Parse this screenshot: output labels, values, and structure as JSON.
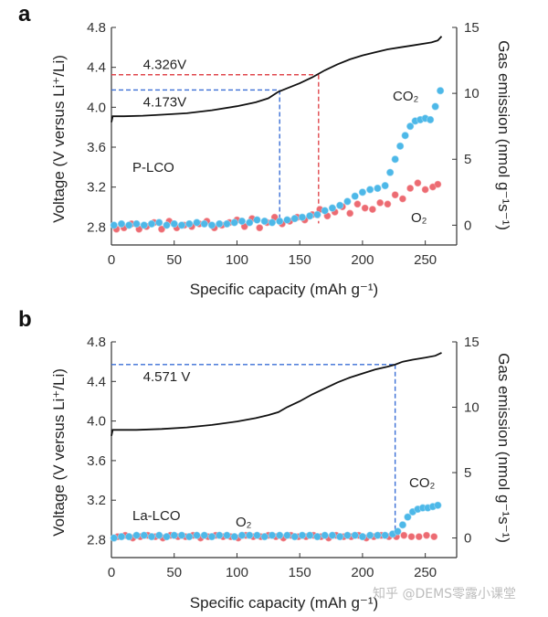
{
  "watermark": "知乎 @DEMS零露小课堂",
  "colors": {
    "voltage": "#111111",
    "co2": "#4db8e8",
    "o2": "#ec6b72",
    "guide_blue": "#3b6fd6",
    "guide_red": "#e0474c"
  },
  "chart_data": [
    {
      "id": "a",
      "panel_label": "a",
      "type": "line+scatter",
      "sample_label": "P-LCO",
      "xlabel": "Specific capacity (mAh g⁻¹)",
      "ylabel_left": "Voltage (V versus Li⁺/Li)",
      "ylabel_right": "Gas emission (nmol g⁻¹s⁻¹)",
      "xlim": [
        0,
        275
      ],
      "ylim_left": [
        2.62,
        4.8
      ],
      "ylim_right": [
        -1.5,
        15
      ],
      "xticks": [
        0,
        50,
        100,
        150,
        200,
        250
      ],
      "yticks_left": [
        2.8,
        3.2,
        3.6,
        4.0,
        4.4,
        4.8
      ],
      "yticks_right": [
        0,
        5,
        10,
        15
      ],
      "voltage_x": [
        0,
        1,
        3,
        10,
        25,
        40,
        60,
        80,
        100,
        115,
        125,
        133,
        140,
        150,
        160,
        170,
        180,
        190,
        200,
        210,
        220,
        230,
        240,
        250,
        255,
        260,
        263
      ],
      "voltage_y": [
        3.85,
        3.91,
        3.91,
        3.91,
        3.915,
        3.925,
        3.94,
        3.97,
        4.01,
        4.05,
        4.09,
        4.155,
        4.19,
        4.24,
        4.3,
        4.37,
        4.43,
        4.48,
        4.52,
        4.55,
        4.58,
        4.6,
        4.62,
        4.64,
        4.65,
        4.67,
        4.71
      ],
      "annotations": [
        {
          "text": "4.326V",
          "v": 4.326,
          "cap": 165,
          "color": "red",
          "text_x": 15
        },
        {
          "text": "4.173V",
          "v": 4.173,
          "cap": 134,
          "color": "blue",
          "text_x": 15
        }
      ],
      "series": [
        {
          "name": "CO₂",
          "x": [
            2,
            8,
            14,
            20,
            26,
            32,
            38,
            44,
            50,
            56,
            62,
            68,
            74,
            80,
            86,
            92,
            98,
            104,
            110,
            116,
            122,
            128,
            134,
            140,
            146,
            152,
            158,
            164,
            170,
            176,
            182,
            188,
            194,
            200,
            206,
            212,
            218,
            222,
            226,
            230,
            234,
            238,
            242,
            246,
            250,
            254,
            258,
            262
          ],
          "y": [
            0.0,
            0.1,
            0.0,
            0.1,
            0.0,
            0.1,
            0.2,
            0.0,
            0.1,
            0.0,
            0.1,
            0.2,
            0.1,
            0.0,
            0.1,
            0.1,
            0.2,
            0.3,
            0.2,
            0.4,
            0.3,
            0.2,
            0.3,
            0.4,
            0.5,
            0.6,
            0.7,
            0.8,
            1.1,
            1.3,
            1.5,
            1.8,
            2.2,
            2.5,
            2.7,
            2.8,
            3.0,
            4.0,
            5.0,
            6.0,
            6.8,
            7.5,
            7.9,
            8.0,
            8.1,
            8.0,
            9.0,
            10.2
          ]
        },
        {
          "name": "O₂",
          "x": [
            4,
            10,
            16,
            22,
            28,
            34,
            40,
            46,
            52,
            58,
            64,
            70,
            76,
            82,
            88,
            94,
            100,
            106,
            112,
            118,
            124,
            130,
            136,
            142,
            148,
            154,
            160,
            166,
            172,
            178,
            184,
            190,
            196,
            202,
            208,
            214,
            220,
            226,
            232,
            238,
            244,
            250,
            256,
            260
          ],
          "y": [
            -0.3,
            -0.2,
            0.1,
            -0.3,
            -0.1,
            0.2,
            -0.3,
            0.3,
            -0.2,
            0.0,
            -0.1,
            0.1,
            0.3,
            -0.2,
            0.0,
            0.2,
            0.4,
            -0.1,
            0.5,
            -0.2,
            0.2,
            0.6,
            0.1,
            0.3,
            0.6,
            0.4,
            0.8,
            1.2,
            0.7,
            1.0,
            1.4,
            0.9,
            1.6,
            1.3,
            1.2,
            1.7,
            1.6,
            2.3,
            2.0,
            2.8,
            3.2,
            2.7,
            2.9,
            3.1
          ]
        }
      ]
    },
    {
      "id": "b",
      "panel_label": "b",
      "type": "line+scatter",
      "sample_label": "La-LCO",
      "o2_label": "O₂",
      "xlabel": "Specific capacity (mAh g⁻¹)",
      "ylabel_left": "Voltage (V versus Li⁺/Li)",
      "ylabel_right": "Gas emission (nmol g⁻¹s⁻¹)",
      "xlim": [
        0,
        275
      ],
      "ylim_left": [
        2.62,
        4.8
      ],
      "ylim_right": [
        -1.5,
        15
      ],
      "xticks": [
        0,
        50,
        100,
        150,
        200,
        250
      ],
      "yticks_left": [
        2.8,
        3.2,
        3.6,
        4.0,
        4.4,
        4.8
      ],
      "yticks_right": [
        0,
        5,
        10,
        15
      ],
      "voltage_x": [
        0,
        1,
        3,
        20,
        40,
        60,
        80,
        100,
        115,
        125,
        133,
        140,
        150,
        160,
        170,
        180,
        190,
        200,
        210,
        220,
        226,
        232,
        240,
        250,
        258,
        263
      ],
      "voltage_y": [
        3.85,
        3.91,
        3.91,
        3.91,
        3.92,
        3.935,
        3.96,
        3.995,
        4.03,
        4.06,
        4.09,
        4.14,
        4.2,
        4.27,
        4.33,
        4.39,
        4.44,
        4.48,
        4.52,
        4.55,
        4.57,
        4.6,
        4.62,
        4.64,
        4.66,
        4.69
      ],
      "annotations": [
        {
          "text": "4.571 V",
          "v": 4.571,
          "cap": 226,
          "color": "blue",
          "text_x": 15
        }
      ],
      "series": [
        {
          "name": "CO₂",
          "x": [
            2,
            8,
            14,
            20,
            26,
            32,
            38,
            44,
            50,
            56,
            62,
            68,
            74,
            80,
            86,
            92,
            98,
            104,
            110,
            116,
            122,
            128,
            134,
            140,
            146,
            152,
            158,
            164,
            170,
            176,
            182,
            188,
            194,
            200,
            206,
            212,
            218,
            224,
            228,
            232,
            236,
            240,
            244,
            248,
            252,
            256,
            260
          ],
          "y": [
            0.0,
            0.1,
            0.1,
            0.2,
            0.2,
            0.1,
            0.2,
            0.1,
            0.2,
            0.2,
            0.1,
            0.2,
            0.2,
            0.1,
            0.2,
            0.2,
            0.1,
            0.2,
            0.2,
            0.2,
            0.1,
            0.2,
            0.2,
            0.2,
            0.1,
            0.2,
            0.2,
            0.1,
            0.2,
            0.2,
            0.1,
            0.2,
            0.2,
            0.1,
            0.2,
            0.2,
            0.2,
            0.3,
            0.5,
            1.0,
            1.6,
            2.0,
            2.2,
            2.3,
            2.3,
            2.4,
            2.5
          ]
        },
        {
          "name": "O₂",
          "x": [
            5,
            11,
            17,
            23,
            29,
            35,
            41,
            47,
            53,
            59,
            65,
            71,
            77,
            83,
            89,
            95,
            101,
            107,
            113,
            119,
            125,
            131,
            137,
            143,
            149,
            155,
            161,
            167,
            173,
            179,
            185,
            191,
            197,
            203,
            209,
            215,
            221,
            227,
            233,
            239,
            245,
            251,
            257
          ],
          "y": [
            0.1,
            0.2,
            0.0,
            0.1,
            0.2,
            0.1,
            0.0,
            0.2,
            0.1,
            0.1,
            0.2,
            0.0,
            0.1,
            0.2,
            0.1,
            0.1,
            0.0,
            0.2,
            0.1,
            0.1,
            0.2,
            0.1,
            0.0,
            0.2,
            0.1,
            0.1,
            0.2,
            0.1,
            0.0,
            0.2,
            0.1,
            0.1,
            0.2,
            0.0,
            0.1,
            0.2,
            0.1,
            0.1,
            0.2,
            0.1,
            0.1,
            0.2,
            0.1
          ]
        }
      ]
    }
  ]
}
